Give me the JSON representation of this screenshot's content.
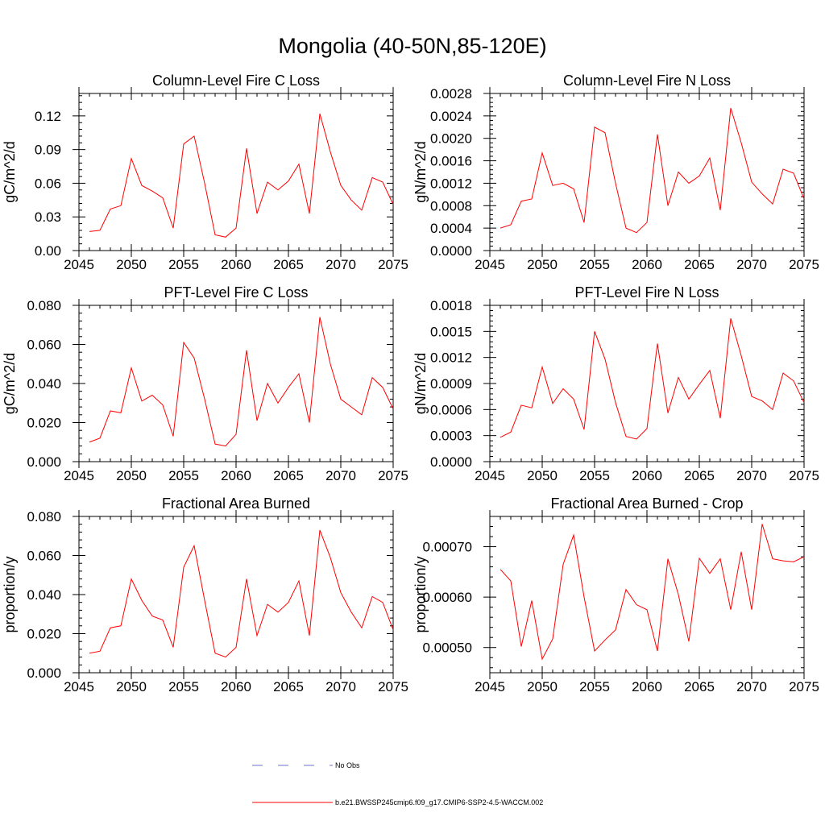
{
  "title": "Mongolia (40-50N,85-120E)",
  "legend": {
    "entries": [
      {
        "label": "No Obs",
        "style": "dashed",
        "color": "#6f6fd0"
      },
      {
        "label": "b.e21.BWSSP245cmip6.f09_g17.CMIP6-SSP2-4.5-WACCM.002",
        "style": "solid",
        "color": "#ff0000"
      }
    ]
  },
  "chart_data": [
    {
      "type": "line",
      "title": "Column-Level Fire C Loss",
      "ylabel": "gC/m^2/d",
      "xlim": [
        2045,
        2075
      ],
      "ylim": [
        0,
        0.14
      ],
      "xticks": [
        2045,
        2050,
        2055,
        2060,
        2065,
        2070,
        2075
      ],
      "yticks": [
        0,
        0.03,
        0.06,
        0.09,
        0.12
      ],
      "ytick_labels": [
        "0.00",
        "0.03",
        "0.06",
        "0.09",
        "0.12"
      ],
      "series": [
        {
          "color": "#ff0000",
          "x": [
            2046,
            2047,
            2048,
            2049,
            2050,
            2051,
            2052,
            2053,
            2054,
            2055,
            2056,
            2057,
            2058,
            2059,
            2060,
            2061,
            2062,
            2063,
            2064,
            2065,
            2066,
            2067,
            2068,
            2069,
            2070,
            2071,
            2072,
            2073,
            2074,
            2075
          ],
          "y": [
            0.017,
            0.018,
            0.037,
            0.04,
            0.082,
            0.058,
            0.053,
            0.047,
            0.02,
            0.095,
            0.102,
            0.06,
            0.014,
            0.012,
            0.02,
            0.091,
            0.033,
            0.061,
            0.054,
            0.062,
            0.077,
            0.033,
            0.122,
            0.088,
            0.058,
            0.045,
            0.036,
            0.065,
            0.061,
            0.041
          ]
        }
      ]
    },
    {
      "type": "line",
      "title": "Column-Level Fire N Loss",
      "ylabel": "gN/m^2/d",
      "xlim": [
        2045,
        2075
      ],
      "ylim": [
        0,
        0.0028
      ],
      "xticks": [
        2045,
        2050,
        2055,
        2060,
        2065,
        2070,
        2075
      ],
      "yticks": [
        0,
        0.0004,
        0.0008,
        0.0012,
        0.0016,
        0.002,
        0.0024,
        0.0028
      ],
      "ytick_labels": [
        "0.0000",
        "0.0004",
        "0.0008",
        "0.0012",
        "0.0016",
        "0.0020",
        "0.0024",
        "0.0028"
      ],
      "series": [
        {
          "color": "#ff0000",
          "x": [
            2046,
            2047,
            2048,
            2049,
            2050,
            2051,
            2052,
            2053,
            2054,
            2055,
            2056,
            2057,
            2058,
            2059,
            2060,
            2061,
            2062,
            2063,
            2064,
            2065,
            2066,
            2067,
            2068,
            2069,
            2070,
            2071,
            2072,
            2073,
            2074,
            2075
          ],
          "y": [
            0.0004,
            0.00046,
            0.00088,
            0.00092,
            0.00174,
            0.00116,
            0.0012,
            0.0011,
            0.0005,
            0.0022,
            0.0021,
            0.0012,
            0.0004,
            0.00032,
            0.0005,
            0.00207,
            0.0008,
            0.0014,
            0.0012,
            0.00133,
            0.00165,
            0.00072,
            0.00254,
            0.00192,
            0.00122,
            0.00101,
            0.00083,
            0.00145,
            0.00138,
            0.00092
          ]
        }
      ]
    },
    {
      "type": "line",
      "title": "PFT-Level Fire C Loss",
      "ylabel": "gC/m^2/d",
      "xlim": [
        2045,
        2075
      ],
      "ylim": [
        0,
        0.08
      ],
      "xticks": [
        2045,
        2050,
        2055,
        2060,
        2065,
        2070,
        2075
      ],
      "yticks": [
        0,
        0.02,
        0.04,
        0.06,
        0.08
      ],
      "ytick_labels": [
        "0.000",
        "0.020",
        "0.040",
        "0.060",
        "0.080"
      ],
      "series": [
        {
          "color": "#ff0000",
          "x": [
            2046,
            2047,
            2048,
            2049,
            2050,
            2051,
            2052,
            2053,
            2054,
            2055,
            2056,
            2057,
            2058,
            2059,
            2060,
            2061,
            2062,
            2063,
            2064,
            2065,
            2066,
            2067,
            2068,
            2069,
            2070,
            2071,
            2072,
            2073,
            2074,
            2075
          ],
          "y": [
            0.01,
            0.012,
            0.026,
            0.025,
            0.048,
            0.031,
            0.034,
            0.029,
            0.013,
            0.061,
            0.053,
            0.032,
            0.009,
            0.008,
            0.014,
            0.057,
            0.021,
            0.04,
            0.03,
            0.038,
            0.045,
            0.02,
            0.074,
            0.05,
            0.032,
            0.028,
            0.024,
            0.043,
            0.038,
            0.027
          ]
        }
      ]
    },
    {
      "type": "line",
      "title": "PFT-Level Fire N Loss",
      "ylabel": "gN/m^2/d",
      "xlim": [
        2045,
        2075
      ],
      "ylim": [
        0,
        0.0018
      ],
      "xticks": [
        2045,
        2050,
        2055,
        2060,
        2065,
        2070,
        2075
      ],
      "yticks": [
        0,
        0.0003,
        0.0006,
        0.0009,
        0.0012,
        0.0015,
        0.0018
      ],
      "ytick_labels": [
        "0.0000",
        "0.0003",
        "0.0006",
        "0.0009",
        "0.0012",
        "0.0015",
        "0.0018"
      ],
      "series": [
        {
          "color": "#ff0000",
          "x": [
            2046,
            2047,
            2048,
            2049,
            2050,
            2051,
            2052,
            2053,
            2054,
            2055,
            2056,
            2057,
            2058,
            2059,
            2060,
            2061,
            2062,
            2063,
            2064,
            2065,
            2066,
            2067,
            2068,
            2069,
            2070,
            2071,
            2072,
            2073,
            2074,
            2075
          ],
          "y": [
            0.00028,
            0.00034,
            0.00065,
            0.00062,
            0.00109,
            0.00067,
            0.00084,
            0.00072,
            0.00037,
            0.0015,
            0.00118,
            0.00068,
            0.00029,
            0.00026,
            0.00038,
            0.00136,
            0.00056,
            0.00097,
            0.00072,
            0.00089,
            0.00105,
            0.0005,
            0.00165,
            0.00122,
            0.00075,
            0.0007,
            0.0006,
            0.00102,
            0.00093,
            0.00068
          ]
        }
      ]
    },
    {
      "type": "line",
      "title": "Fractional Area Burned",
      "ylabel": "proportion/y",
      "xlim": [
        2045,
        2075
      ],
      "ylim": [
        0,
        0.08
      ],
      "xticks": [
        2045,
        2050,
        2055,
        2060,
        2065,
        2070,
        2075
      ],
      "yticks": [
        0,
        0.02,
        0.04,
        0.06,
        0.08
      ],
      "ytick_labels": [
        "0.000",
        "0.020",
        "0.040",
        "0.060",
        "0.080"
      ],
      "series": [
        {
          "color": "#ff0000",
          "x": [
            2046,
            2047,
            2048,
            2049,
            2050,
            2051,
            2052,
            2053,
            2054,
            2055,
            2056,
            2057,
            2058,
            2059,
            2060,
            2061,
            2062,
            2063,
            2064,
            2065,
            2066,
            2067,
            2068,
            2069,
            2070,
            2071,
            2072,
            2073,
            2074,
            2075
          ],
          "y": [
            0.01,
            0.011,
            0.023,
            0.024,
            0.048,
            0.037,
            0.029,
            0.027,
            0.013,
            0.054,
            0.065,
            0.037,
            0.01,
            0.008,
            0.013,
            0.048,
            0.019,
            0.035,
            0.031,
            0.036,
            0.047,
            0.019,
            0.073,
            0.059,
            0.041,
            0.031,
            0.023,
            0.039,
            0.036,
            0.022
          ]
        }
      ]
    },
    {
      "type": "line",
      "title": "Fractional Area Burned - Crop",
      "ylabel": "proportion/y",
      "xlim": [
        2045,
        2075
      ],
      "ylim": [
        0.00045,
        0.00076
      ],
      "xticks": [
        2045,
        2050,
        2055,
        2060,
        2065,
        2070,
        2075
      ],
      "yticks": [
        0.0005,
        0.0006,
        0.0007
      ],
      "ytick_labels": [
        "0.00050",
        "0.00060",
        "0.00070"
      ],
      "series": [
        {
          "color": "#ff0000",
          "x": [
            2046,
            2047,
            2048,
            2049,
            2050,
            2051,
            2052,
            2053,
            2054,
            2055,
            2056,
            2057,
            2058,
            2059,
            2060,
            2061,
            2062,
            2063,
            2064,
            2065,
            2066,
            2067,
            2068,
            2069,
            2070,
            2071,
            2072,
            2073,
            2074,
            2075
          ],
          "y": [
            0.000655,
            0.000632,
            0.000502,
            0.000593,
            0.000477,
            0.000517,
            0.000665,
            0.000723,
            0.0006,
            0.000493,
            0.000515,
            0.000535,
            0.000615,
            0.000585,
            0.000575,
            0.000493,
            0.000676,
            0.000605,
            0.000512,
            0.000677,
            0.000647,
            0.000676,
            0.000575,
            0.00069,
            0.000575,
            0.000745,
            0.000676,
            0.000672,
            0.00067,
            0.00068
          ]
        }
      ]
    }
  ]
}
